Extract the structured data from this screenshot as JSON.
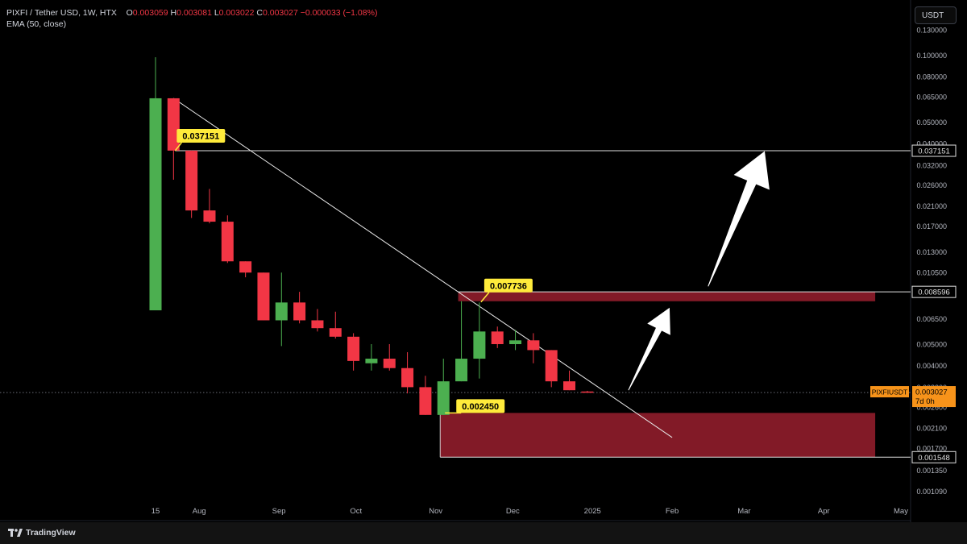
{
  "header": {
    "title": "PIXFI / Tether USD, 1W, HTX",
    "o_label": "O",
    "o_value": "0.003059",
    "h_label": "H",
    "h_value": "0.003081",
    "l_label": "L",
    "l_value": "0.003022",
    "c_label": "C",
    "c_value": "0.003027",
    "change": "−0.000033 (−1.08%)",
    "indicator": "EMA (50, close)"
  },
  "currency_button": "USDT",
  "brand": "TradingView",
  "colors": {
    "up": "#4caf50",
    "down": "#f23645",
    "zone": "#821a27",
    "label_bg": "#ffeb3b",
    "last_price": "#f7931a"
  },
  "chart_data": {
    "type": "candlestick",
    "symbol": "PIXFIUSDT",
    "interval": "1W",
    "y_scale": "log",
    "ylim": [
      0.00098,
      0.138
    ],
    "y_ticks": [
      "0.130000",
      "0.100000",
      "0.080000",
      "0.065000",
      "0.050000",
      "0.040000",
      "0.032000",
      "0.026000",
      "0.021000",
      "0.017000",
      "0.013000",
      "0.010500",
      "0.006500",
      "0.005000",
      "0.004000",
      "0.003200",
      "0.002600",
      "0.002100",
      "0.001700",
      "0.001350",
      "0.001090"
    ],
    "x_ticks": [
      {
        "label": "15",
        "date": "2024-07-15"
      },
      {
        "label": "Aug",
        "date": "2024-08-01"
      },
      {
        "label": "Sep",
        "date": "2024-09-01"
      },
      {
        "label": "Oct",
        "date": "2024-10-01"
      },
      {
        "label": "Nov",
        "date": "2024-11-01"
      },
      {
        "label": "Dec",
        "date": "2024-12-01"
      },
      {
        "label": "2025",
        "date": "2025-01-01"
      },
      {
        "label": "Feb",
        "date": "2025-02-01"
      },
      {
        "label": "Mar",
        "date": "2025-03-01"
      },
      {
        "label": "Apr",
        "date": "2025-04-01"
      },
      {
        "label": "May",
        "date": "2025-05-01"
      }
    ],
    "candles": [
      {
        "date": "2024-07-15",
        "o": 0.0071,
        "h": 0.098,
        "l": 0.0071,
        "c": 0.064
      },
      {
        "date": "2024-07-22",
        "o": 0.064,
        "h": 0.064,
        "l": 0.0275,
        "c": 0.0372
      },
      {
        "date": "2024-07-29",
        "o": 0.0372,
        "h": 0.0372,
        "l": 0.0185,
        "c": 0.02
      },
      {
        "date": "2024-08-05",
        "o": 0.02,
        "h": 0.025,
        "l": 0.0175,
        "c": 0.0178
      },
      {
        "date": "2024-08-12",
        "o": 0.0178,
        "h": 0.019,
        "l": 0.0116,
        "c": 0.0118
      },
      {
        "date": "2024-08-19",
        "o": 0.0118,
        "h": 0.0118,
        "l": 0.01,
        "c": 0.0105
      },
      {
        "date": "2024-08-26",
        "o": 0.0105,
        "h": 0.0105,
        "l": 0.0064,
        "c": 0.0064
      },
      {
        "date": "2024-09-02",
        "o": 0.0064,
        "h": 0.0105,
        "l": 0.0049,
        "c": 0.0077
      },
      {
        "date": "2024-09-09",
        "o": 0.0077,
        "h": 0.0086,
        "l": 0.0062,
        "c": 0.0064
      },
      {
        "date": "2024-09-16",
        "o": 0.0064,
        "h": 0.0072,
        "l": 0.0057,
        "c": 0.0059
      },
      {
        "date": "2024-09-23",
        "o": 0.0059,
        "h": 0.007,
        "l": 0.0053,
        "c": 0.0054
      },
      {
        "date": "2024-09-30",
        "o": 0.0054,
        "h": 0.0056,
        "l": 0.0038,
        "c": 0.0042
      },
      {
        "date": "2024-10-07",
        "o": 0.0041,
        "h": 0.005,
        "l": 0.0038,
        "c": 0.0043
      },
      {
        "date": "2024-10-14",
        "o": 0.0043,
        "h": 0.005,
        "l": 0.0038,
        "c": 0.0039
      },
      {
        "date": "2024-10-21",
        "o": 0.0039,
        "h": 0.0046,
        "l": 0.003,
        "c": 0.0032
      },
      {
        "date": "2024-10-28",
        "o": 0.0032,
        "h": 0.0036,
        "l": 0.0024,
        "c": 0.0024
      },
      {
        "date": "2024-11-04",
        "o": 0.0024,
        "h": 0.0043,
        "l": 0.0024,
        "c": 0.0034
      },
      {
        "date": "2024-11-11",
        "o": 0.0034,
        "h": 0.0078,
        "l": 0.0034,
        "c": 0.0043
      },
      {
        "date": "2024-11-18",
        "o": 0.0043,
        "h": 0.0077,
        "l": 0.0035,
        "c": 0.0057
      },
      {
        "date": "2024-11-25",
        "o": 0.0057,
        "h": 0.006,
        "l": 0.0048,
        "c": 0.005
      },
      {
        "date": "2024-12-02",
        "o": 0.005,
        "h": 0.0058,
        "l": 0.0047,
        "c": 0.0052
      },
      {
        "date": "2024-12-09",
        "o": 0.0052,
        "h": 0.0056,
        "l": 0.0041,
        "c": 0.0047
      },
      {
        "date": "2024-12-16",
        "o": 0.0047,
        "h": 0.0047,
        "l": 0.0032,
        "c": 0.0034
      },
      {
        "date": "2024-12-23",
        "o": 0.0034,
        "h": 0.0038,
        "l": 0.0031,
        "c": 0.0031
      },
      {
        "date": "2024-12-30",
        "o": 0.003059,
        "h": 0.003081,
        "l": 0.003022,
        "c": 0.003027
      }
    ],
    "levels": [
      {
        "price": "0.037151",
        "value": 0.037151
      },
      {
        "price": "0.008596",
        "value": 0.008596
      },
      {
        "price": "0.001548",
        "value": 0.001548
      }
    ],
    "callouts": [
      {
        "text": "0.037151",
        "value": 0.037151,
        "date": "2024-07-22"
      },
      {
        "text": "0.007736",
        "value": 0.007736,
        "date": "2024-11-18"
      },
      {
        "text": "0.002450",
        "value": 0.00245,
        "date": "2024-11-04"
      }
    ],
    "zones": [
      {
        "name": "resistance",
        "from": 0.0078,
        "to": 0.0086,
        "start": "2024-11-11",
        "end": "2025-04-21"
      },
      {
        "name": "support",
        "from": 0.001548,
        "to": 0.00245,
        "start": "2024-11-04",
        "end": "2025-04-21"
      }
    ],
    "trendline": {
      "start": {
        "date": "2024-07-22",
        "value": 0.064
      },
      "end": {
        "date": "2025-02-01",
        "value": 0.0019
      }
    },
    "arrows": [
      {
        "from": {
          "date": "2025-01-15",
          "value": 0.0031
        },
        "to": {
          "date": "2025-01-31",
          "value": 0.0073
        }
      },
      {
        "from": {
          "date": "2025-02-15",
          "value": 0.0091
        },
        "to": {
          "date": "2025-03-09",
          "value": 0.037
        }
      }
    ],
    "last_price": {
      "symbol": "PIXFIUSDT",
      "price": "0.003027",
      "countdown": "7d 0h",
      "value": 0.003027
    }
  }
}
